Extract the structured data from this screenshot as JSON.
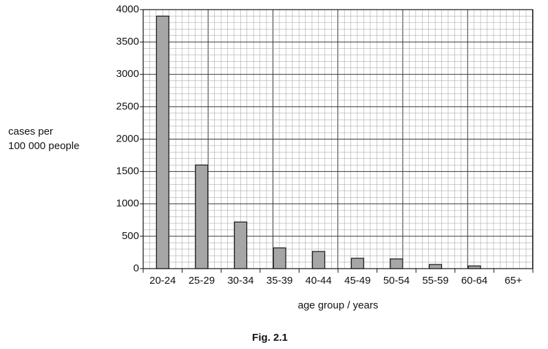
{
  "chart_data": {
    "type": "bar",
    "categories": [
      "20-24",
      "25-29",
      "30-34",
      "35-39",
      "40-44",
      "45-49",
      "50-54",
      "55-59",
      "60-64",
      "65+"
    ],
    "values": [
      3900,
      1600,
      720,
      320,
      265,
      160,
      150,
      64,
      42,
      0
    ],
    "color": "#a6a6a6",
    "ylim": [
      0,
      4000
    ],
    "yticks": [
      0,
      500,
      1000,
      1500,
      2000,
      2500,
      3000,
      3500,
      4000
    ],
    "ylabel": [
      "cases per",
      "100 000 people"
    ],
    "xlabel": "age group / years",
    "caption": "Fig. 2.1",
    "grid": true
  }
}
